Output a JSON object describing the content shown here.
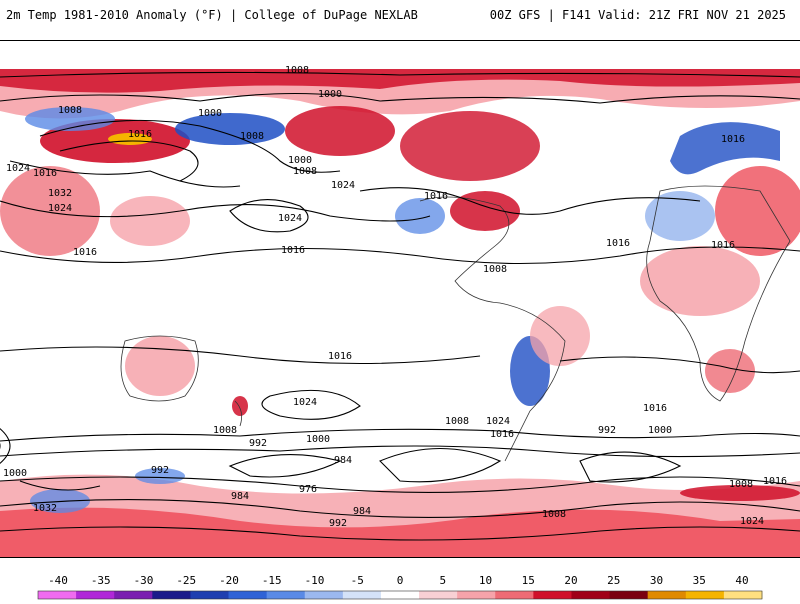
{
  "header": {
    "title_left": "2m Temp 1981-2010 Anomaly (°F) | College of DuPage NEXLAB",
    "title_right": "00Z GFS | F141 Valid: 21Z FRI NOV 21 2025"
  },
  "colors": {
    "warm_strong": "#d0102a",
    "warm_med": "#ee4d5a",
    "warm_light": "#f6a3aa",
    "cold_strong": "#1f4fc4",
    "cold_light": "#9bb8ef",
    "extreme": "#f5b400"
  },
  "contours": [
    {
      "label": "1008",
      "id": "c1"
    },
    {
      "label": "1000",
      "id": "c2"
    },
    {
      "label": "1008",
      "id": "c3"
    },
    {
      "label": "1000",
      "id": "c4"
    },
    {
      "label": "1008",
      "id": "c5"
    },
    {
      "label": "1016",
      "id": "c6"
    },
    {
      "label": "1024",
      "id": "c7"
    },
    {
      "label": "1016",
      "id": "c8"
    },
    {
      "label": "1032",
      "id": "c9"
    },
    {
      "label": "1024",
      "id": "c10"
    },
    {
      "label": "1016",
      "id": "c11"
    },
    {
      "label": "1000",
      "id": "c12"
    },
    {
      "label": "1008",
      "id": "c13"
    },
    {
      "label": "1024",
      "id": "c14"
    },
    {
      "label": "1024",
      "id": "c15"
    },
    {
      "label": "1016",
      "id": "c16"
    },
    {
      "label": "1016",
      "id": "c17"
    },
    {
      "label": "1008",
      "id": "c18"
    },
    {
      "label": "1016",
      "id": "c19"
    },
    {
      "label": "1016",
      "id": "c20"
    },
    {
      "label": "1016",
      "id": "c21"
    },
    {
      "label": "1016",
      "id": "c22"
    },
    {
      "label": "1024",
      "id": "c23"
    },
    {
      "label": "1008",
      "id": "c24"
    },
    {
      "label": "992",
      "id": "c25"
    },
    {
      "label": "1000",
      "id": "c26"
    },
    {
      "label": "984",
      "id": "c27"
    },
    {
      "label": "976",
      "id": "c28"
    },
    {
      "label": "984",
      "id": "c29"
    },
    {
      "label": "992",
      "id": "c30"
    },
    {
      "label": "1032",
      "id": "c31"
    },
    {
      "label": "1000",
      "id": "c32"
    },
    {
      "label": "992",
      "id": "c33"
    },
    {
      "label": "984",
      "id": "c34"
    },
    {
      "label": "1008",
      "id": "c35"
    },
    {
      "label": "1016",
      "id": "c36"
    },
    {
      "label": "1024",
      "id": "c37"
    },
    {
      "label": "1008",
      "id": "c38"
    },
    {
      "label": "1000",
      "id": "c39"
    },
    {
      "label": "992",
      "id": "c40"
    },
    {
      "label": "1016",
      "id": "c41"
    },
    {
      "label": "1024",
      "id": "c42"
    },
    {
      "label": "1008",
      "id": "c43"
    },
    {
      "label": "1016",
      "id": "c44"
    }
  ],
  "colorbar": {
    "ticks": [
      "-40",
      "-35",
      "-30",
      "-25",
      "-20",
      "-15",
      "-10",
      "-5",
      "0",
      "5",
      "10",
      "15",
      "20",
      "25",
      "30",
      "35",
      "40"
    ],
    "swatches": [
      "#f06bf0",
      "#b028d8",
      "#7a1eb0",
      "#1a1a8a",
      "#1f3fb0",
      "#2f62d6",
      "#5a8ae6",
      "#9bb8ef",
      "#d4e2f8",
      "#ffffff",
      "#f8d0d4",
      "#f6a3aa",
      "#ee6b75",
      "#d0102a",
      "#a00018",
      "#7a0010",
      "#e08a00",
      "#f5b400",
      "#ffe080"
    ]
  }
}
